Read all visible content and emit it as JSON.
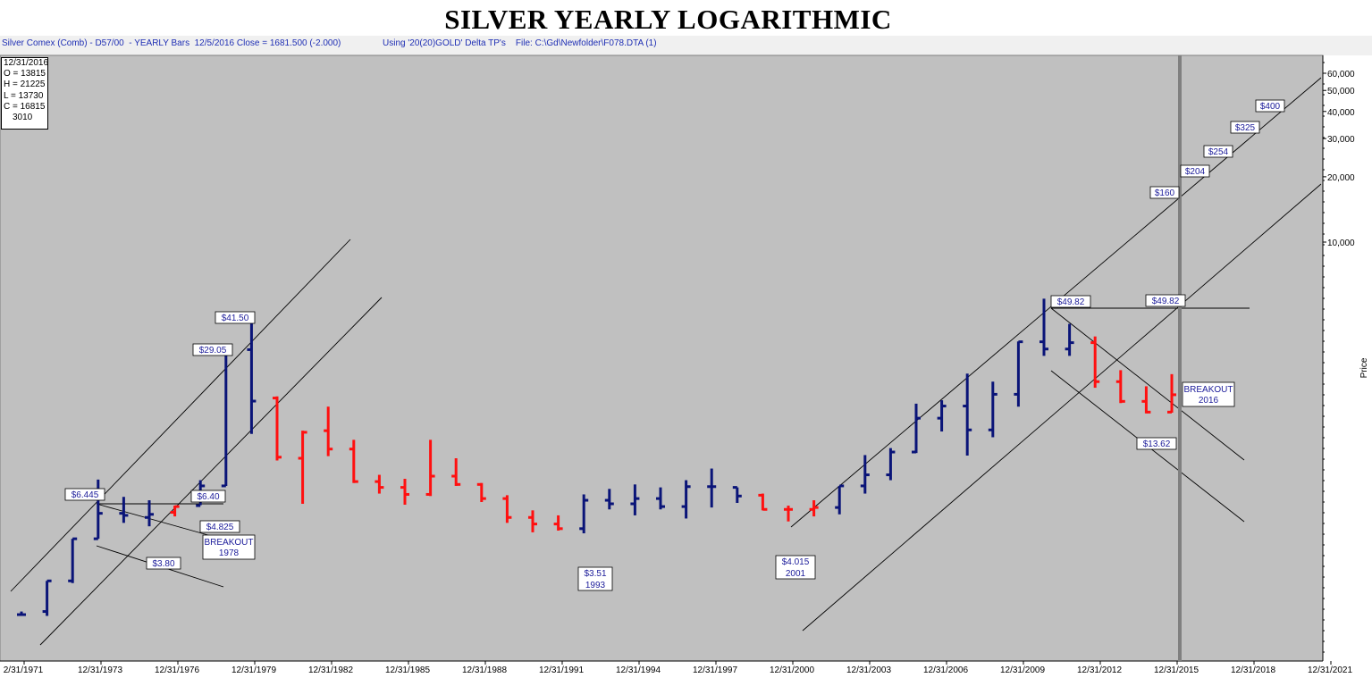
{
  "header": {
    "title": "SILVER YEARLY LOGARITHMIC",
    "left_info": "Silver Comex (Comb) - D57/00  - YEARLY Bars  12/5/2016 Close = 1681.500 (-2.000)",
    "right_info": "Using '20(20)GOLD' Delta TP's    File: C:\\Gd\\Newfolder\\F078.DTA (1)"
  },
  "ohlc_box": {
    "date": "12/31/2016",
    "open": "O = 13815",
    "high": "H = 21225",
    "low": "L = 13730",
    "close": "C = 16815",
    "extra": "3010"
  },
  "colors": {
    "background": "#c0c0c0",
    "up_bar": "#0a1478",
    "down_bar": "#ff1010",
    "label_text": "#1c1c9a"
  },
  "chart_data": {
    "type": "ohlc",
    "scale": "log",
    "y_axis_label": "Price",
    "y_ticks": [
      "60,000",
      "50,000",
      "40,000",
      "30,000",
      "20,000",
      "10,000"
    ],
    "x_tick_labels": [
      "2/31/1971",
      "12/31/1973",
      "12/31/1976",
      "12/31/1979",
      "12/31/1982",
      "12/31/1985",
      "12/31/1988",
      "12/31/1991",
      "12/31/1994",
      "12/31/1997",
      "12/31/2000",
      "12/31/2003",
      "12/31/2006",
      "12/31/2009",
      "12/31/2012",
      "12/31/2015",
      "12/31/2018",
      "12/31/2021"
    ],
    "bars": [
      {
        "year": 1971,
        "o": 1.4,
        "h": 1.45,
        "l": 1.38,
        "c": 1.4,
        "color": "up"
      },
      {
        "year": 1972,
        "o": 1.45,
        "h": 2.05,
        "l": 1.38,
        "c": 2.05,
        "color": "up"
      },
      {
        "year": 1973,
        "o": 2.05,
        "h": 3.3,
        "l": 2.0,
        "c": 3.3,
        "color": "up"
      },
      {
        "year": 1974,
        "o": 3.3,
        "h": 6.445,
        "l": 3.3,
        "c": 4.4,
        "color": "up"
      },
      {
        "year": 1975,
        "o": 4.4,
        "h": 5.3,
        "l": 3.95,
        "c": 4.3,
        "color": "up"
      },
      {
        "year": 1976,
        "o": 4.2,
        "h": 5.1,
        "l": 3.8,
        "c": 4.35,
        "color": "up"
      },
      {
        "year": 1977,
        "o": 4.45,
        "h": 4.8,
        "l": 4.25,
        "c": 4.75,
        "color": "down"
      },
      {
        "year": 1978,
        "o": 4.8,
        "h": 6.4,
        "l": 4.825,
        "c": 6.0,
        "color": "up"
      },
      {
        "year": 1979,
        "o": 6.0,
        "h": 29.05,
        "l": 6.0,
        "c": 28.0,
        "color": "up"
      },
      {
        "year": 1980,
        "o": 28.0,
        "h": 41.5,
        "l": 10.8,
        "c": 15.65,
        "color": "up"
      },
      {
        "year": 1981,
        "o": 16.2,
        "h": 16.5,
        "l": 8.0,
        "c": 8.3,
        "color": "down"
      },
      {
        "year": 1982,
        "o": 8.2,
        "h": 11.2,
        "l": 4.9,
        "c": 11.0,
        "color": "down"
      },
      {
        "year": 1983,
        "o": 11.2,
        "h": 14.7,
        "l": 8.4,
        "c": 9.1,
        "color": "down"
      },
      {
        "year": 1984,
        "o": 9.1,
        "h": 10.1,
        "l": 6.2,
        "c": 6.3,
        "color": "down"
      },
      {
        "year": 1985,
        "o": 6.3,
        "h": 6.8,
        "l": 5.5,
        "c": 5.9,
        "color": "down"
      },
      {
        "year": 1986,
        "o": 5.9,
        "h": 6.5,
        "l": 4.85,
        "c": 5.45,
        "color": "down"
      },
      {
        "year": 1987,
        "o": 5.45,
        "h": 10.1,
        "l": 5.35,
        "c": 6.7,
        "color": "down"
      },
      {
        "year": 1988,
        "o": 6.7,
        "h": 8.2,
        "l": 6.0,
        "c": 6.1,
        "color": "down"
      },
      {
        "year": 1989,
        "o": 6.1,
        "h": 6.2,
        "l": 5.0,
        "c": 5.2,
        "color": "down"
      },
      {
        "year": 1990,
        "o": 5.2,
        "h": 5.4,
        "l": 3.95,
        "c": 4.2,
        "color": "down"
      },
      {
        "year": 1991,
        "o": 4.2,
        "h": 4.55,
        "l": 3.55,
        "c": 3.9,
        "color": "down"
      },
      {
        "year": 1992,
        "o": 3.9,
        "h": 4.3,
        "l": 3.62,
        "c": 3.7,
        "color": "down"
      },
      {
        "year": 1993,
        "o": 3.7,
        "h": 5.45,
        "l": 3.51,
        "c": 5.1,
        "color": "up"
      },
      {
        "year": 1994,
        "o": 5.1,
        "h": 5.8,
        "l": 4.6,
        "c": 4.9,
        "color": "up"
      },
      {
        "year": 1995,
        "o": 4.9,
        "h": 6.1,
        "l": 4.3,
        "c": 5.2,
        "color": "up"
      },
      {
        "year": 1996,
        "o": 5.2,
        "h": 5.9,
        "l": 4.6,
        "c": 4.75,
        "color": "up"
      },
      {
        "year": 1997,
        "o": 4.75,
        "h": 6.4,
        "l": 4.15,
        "c": 5.95,
        "color": "up"
      },
      {
        "year": 1998,
        "o": 5.95,
        "h": 7.3,
        "l": 4.7,
        "c": 5.95,
        "color": "up"
      },
      {
        "year": 1999,
        "o": 5.9,
        "h": 5.9,
        "l": 4.95,
        "c": 5.35,
        "color": "up"
      },
      {
        "year": 2000,
        "o": 5.4,
        "h": 5.5,
        "l": 4.55,
        "c": 4.6,
        "color": "down"
      },
      {
        "year": 2001,
        "o": 4.6,
        "h": 4.8,
        "l": 4.015,
        "c": 4.6,
        "color": "down"
      },
      {
        "year": 2002,
        "o": 4.6,
        "h": 5.1,
        "l": 4.25,
        "c": 4.7,
        "color": "down"
      },
      {
        "year": 2003,
        "o": 4.7,
        "h": 6.0,
        "l": 4.35,
        "c": 6.0,
        "color": "up"
      },
      {
        "year": 2004,
        "o": 6.0,
        "h": 8.5,
        "l": 5.5,
        "c": 6.8,
        "color": "up"
      },
      {
        "year": 2005,
        "o": 6.8,
        "h": 9.2,
        "l": 6.4,
        "c": 8.8,
        "color": "up"
      },
      {
        "year": 2006,
        "o": 8.8,
        "h": 15.2,
        "l": 8.7,
        "c": 12.9,
        "color": "up"
      },
      {
        "year": 2007,
        "o": 12.9,
        "h": 15.8,
        "l": 11.1,
        "c": 14.8,
        "color": "up"
      },
      {
        "year": 2008,
        "o": 14.8,
        "h": 21.35,
        "l": 8.45,
        "c": 11.3,
        "color": "up"
      },
      {
        "year": 2009,
        "o": 11.3,
        "h": 19.5,
        "l": 10.4,
        "c": 16.9,
        "color": "up"
      },
      {
        "year": 2010,
        "o": 16.9,
        "h": 30.7,
        "l": 14.7,
        "c": 30.6,
        "color": "up"
      },
      {
        "year": 2011,
        "o": 30.6,
        "h": 49.82,
        "l": 26.1,
        "c": 28.2,
        "color": "up"
      },
      {
        "year": 2012,
        "o": 28.2,
        "h": 37.5,
        "l": 26.1,
        "c": 30.3,
        "color": "up"
      },
      {
        "year": 2013,
        "o": 30.3,
        "h": 32.5,
        "l": 18.2,
        "c": 19.5,
        "color": "down"
      },
      {
        "year": 2014,
        "o": 19.5,
        "h": 22.2,
        "l": 15.3,
        "c": 15.6,
        "color": "down"
      },
      {
        "year": 2015,
        "o": 15.6,
        "h": 18.5,
        "l": 13.62,
        "c": 13.82,
        "color": "down"
      },
      {
        "year": 2016,
        "o": 13.82,
        "h": 21.225,
        "l": 13.73,
        "c": 16.815,
        "color": "down"
      }
    ],
    "price_labels": [
      {
        "text": "$6.445",
        "year": 1974,
        "price": 6.445
      },
      {
        "text": "$6.40",
        "year": 1978,
        "price": 6.4
      },
      {
        "text": "$4.825",
        "year": 1978,
        "price": 4.825
      },
      {
        "text": "$3.80",
        "year": 1976,
        "price": 3.8
      },
      {
        "text": "$29.05",
        "year": 1979,
        "price": 29.05
      },
      {
        "text": "$41.50",
        "year": 1980,
        "price": 41.5
      },
      {
        "text": "$3.51",
        "year": 1993,
        "price": 3.51,
        "sub": "1993"
      },
      {
        "text": "$4.015",
        "year": 2001,
        "price": 4.015,
        "sub": "2001"
      },
      {
        "text": "$49.82",
        "year": 2011,
        "price": 49.82
      },
      {
        "text": "$49.82",
        "year": 2016,
        "price": 49.82
      },
      {
        "text": "$13.62",
        "year": 2015,
        "price": 13.62
      },
      {
        "text": "$160",
        "year": 2016,
        "price": 160
      },
      {
        "text": "$204",
        "year": 2016,
        "price": 204
      },
      {
        "text": "$254",
        "year": 2017,
        "price": 254
      },
      {
        "text": "$325",
        "year": 2018,
        "price": 325
      },
      {
        "text": "$400",
        "year": 2019,
        "price": 400
      }
    ],
    "annotations": [
      {
        "text": "BREAKOUT",
        "sub": "1978"
      },
      {
        "text": "BREAKOUT",
        "sub": "2016"
      }
    ]
  }
}
